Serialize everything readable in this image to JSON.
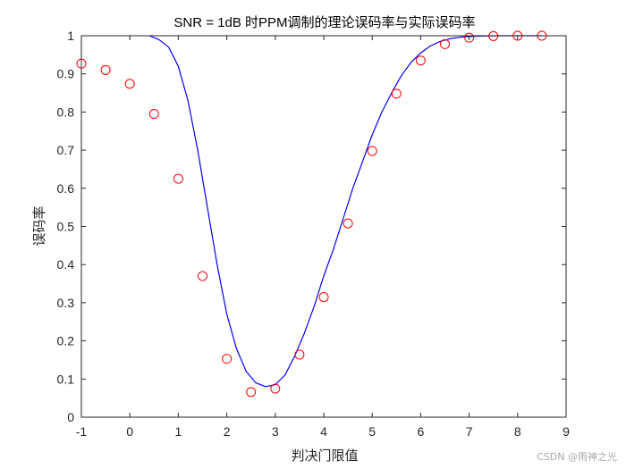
{
  "chart_data": {
    "type": "line",
    "title": "SNR = 1dB 时PPM调制的理论误码率与实际误码率",
    "xlabel": "判决门限值",
    "ylabel": "误码率",
    "xlim": [
      -1,
      9
    ],
    "ylim": [
      0,
      1
    ],
    "x_ticks": [
      "-1",
      "0",
      "1",
      "2",
      "3",
      "4",
      "5",
      "6",
      "7",
      "8",
      "9"
    ],
    "y_ticks": [
      "0",
      "0.1",
      "0.2",
      "0.3",
      "0.4",
      "0.5",
      "0.6",
      "0.7",
      "0.8",
      "0.9",
      "1"
    ],
    "grid": false,
    "series": [
      {
        "style": "line",
        "color": "#0000ff",
        "x": [
          0.4,
          0.6,
          0.8,
          1.0,
          1.2,
          1.4,
          1.6,
          1.8,
          2.0,
          2.2,
          2.4,
          2.6,
          2.8,
          3.0,
          3.2,
          3.4,
          3.6,
          3.8,
          4.0,
          4.2,
          4.4,
          4.6,
          4.8,
          5.0,
          5.2,
          5.4,
          5.6,
          5.8,
          6.0,
          6.2,
          6.4,
          6.6,
          6.8,
          7.0,
          7.2,
          7.6,
          8.0,
          8.5
        ],
        "y": [
          1.0,
          0.99,
          0.97,
          0.92,
          0.83,
          0.7,
          0.55,
          0.4,
          0.27,
          0.18,
          0.12,
          0.09,
          0.08,
          0.085,
          0.11,
          0.16,
          0.22,
          0.29,
          0.37,
          0.44,
          0.52,
          0.6,
          0.67,
          0.74,
          0.8,
          0.85,
          0.895,
          0.93,
          0.955,
          0.973,
          0.985,
          0.992,
          0.996,
          0.998,
          0.999,
          1.0,
          1.0,
          1.0
        ]
      },
      {
        "style": "markers",
        "marker": "circle",
        "color": "#ff0000",
        "x": [
          -1,
          -0.5,
          0,
          0.5,
          1,
          1.5,
          2,
          2.5,
          3,
          3.5,
          4,
          4.5,
          5,
          5.5,
          6,
          6.5,
          7,
          7.5,
          8,
          8.5
        ],
        "y": [
          0.927,
          0.91,
          0.874,
          0.795,
          0.625,
          0.37,
          0.153,
          0.066,
          0.075,
          0.164,
          0.315,
          0.508,
          0.698,
          0.848,
          0.935,
          0.978,
          0.995,
          0.999,
          1.0,
          1.0
        ]
      }
    ]
  },
  "watermark": "CSDN @雨神之光"
}
